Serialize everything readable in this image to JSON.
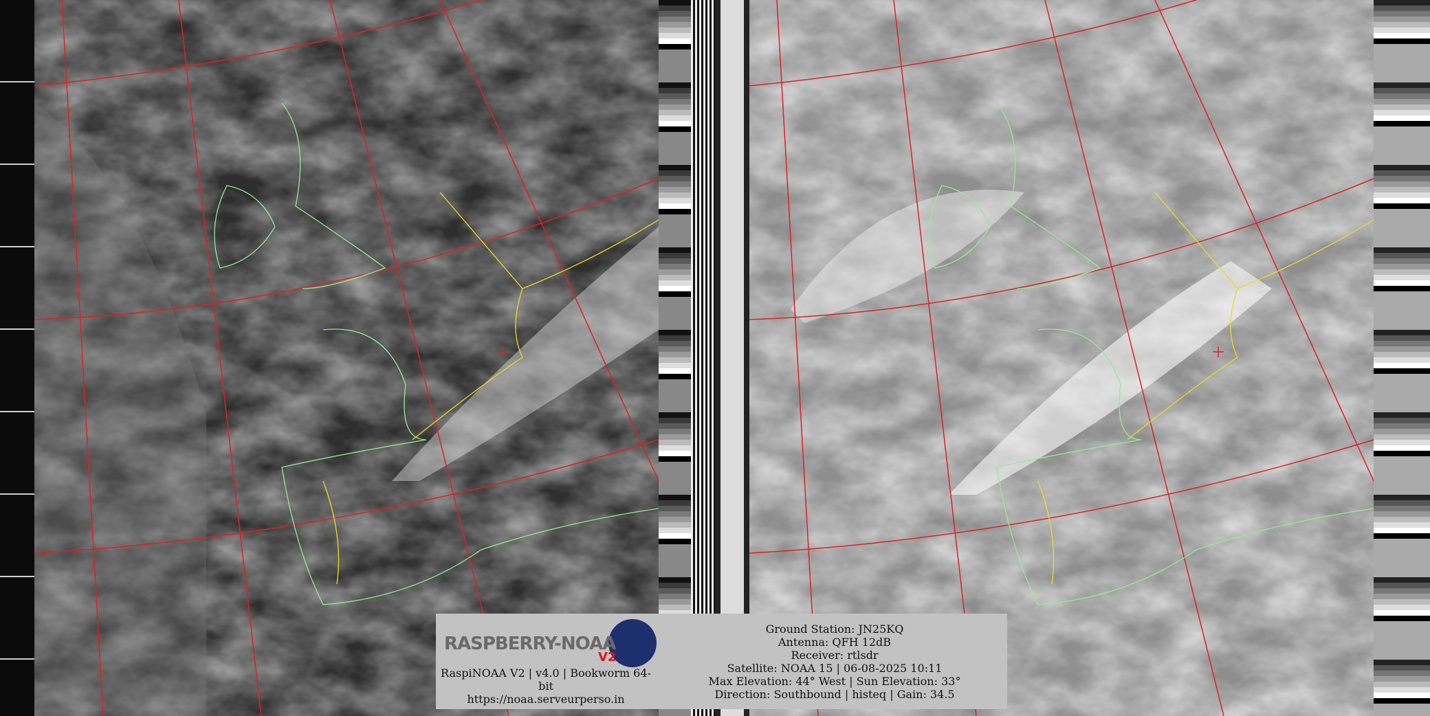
{
  "info_box": {
    "logo_text": "RASPBERRY-NOAA",
    "logo_version": "V2",
    "software_line": "RaspiNOAA V2 | v4.0 | Bookworm 64-bit",
    "url": "https://noaa.serveurperso.in",
    "ground_station": "Ground Station: JN25KQ",
    "antenna": "Antenna: QFH 12dB",
    "receiver": "Receiver: rtlsdr",
    "satellite": "Satellite: NOAA 15 | 06-08-2025 10:11",
    "elevation": "Max Elevation: 44° West | Sun Elevation: 33°",
    "direction": "Direction: Southbound | histeq | Gain: 34.5"
  },
  "colors": {
    "graticule": "#e02020",
    "coastline": "#90ee90",
    "borders": "#e8e020",
    "info_bg": "#c2c2c2"
  }
}
